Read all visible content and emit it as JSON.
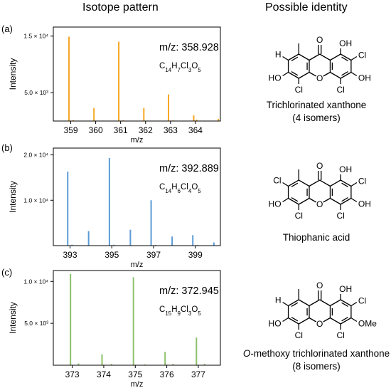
{
  "headers": {
    "left": "Isotope pattern",
    "right": "Possible identity"
  },
  "chart_data": [
    {
      "type": "bar",
      "panel": "(a)",
      "ylabel": "Intensity",
      "xlabel": "m/z",
      "xlim": [
        358.3,
        365.0
      ],
      "ylim": [
        0,
        16600
      ],
      "xticks": [
        "359",
        "360",
        "361",
        "362",
        "363",
        "364"
      ],
      "xtick_values": [
        359,
        360,
        361,
        362,
        363,
        364
      ],
      "yticks": [
        {
          "value": 15000,
          "label": "1.5 × 10⁴"
        },
        {
          "value": 5000,
          "label": "5.0 × 10³"
        }
      ],
      "color": "#f5a623",
      "mz_label": "m/z: 358.928",
      "formula": "C14H7Cl3O5",
      "formula_parts": [
        [
          "C",
          ""
        ],
        [
          "14",
          "sub"
        ],
        [
          "H",
          ""
        ],
        [
          "7",
          "sub"
        ],
        [
          "Cl",
          ""
        ],
        [
          "3",
          "sub"
        ],
        [
          "O",
          ""
        ],
        [
          "5",
          "sub"
        ]
      ],
      "peaks": [
        {
          "x": 358.928,
          "y": 14900
        },
        {
          "x": 359.93,
          "y": 2300
        },
        {
          "x": 360.925,
          "y": 14000
        },
        {
          "x": 361.93,
          "y": 2300
        },
        {
          "x": 362.92,
          "y": 4700
        },
        {
          "x": 363.93,
          "y": 1000
        },
        {
          "x": 364.92,
          "y": 380
        },
        {
          "x": 359.1,
          "y": 150
        },
        {
          "x": 361.1,
          "y": 120
        },
        {
          "x": 363.1,
          "y": 100
        },
        {
          "x": 364.05,
          "y": 250
        }
      ],
      "compound": {
        "line1": "Trichlorinated xanthone",
        "line2": "(4 isomers)"
      }
    },
    {
      "type": "bar",
      "panel": "(b)",
      "ylabel": "Intensity",
      "xlabel": "m/z",
      "xlim": [
        392.2,
        400.2
      ],
      "ylim": [
        0,
        21500
      ],
      "xticks": [
        "393",
        "395",
        "397",
        "399"
      ],
      "xtick_values": [
        393,
        395,
        397,
        399
      ],
      "yticks": [
        {
          "value": 20000,
          "label": "2.0 × 10⁴"
        },
        {
          "value": 10000,
          "label": "1.0 × 10⁴"
        }
      ],
      "color": "#5b9bd5",
      "mz_label": "m/z: 392.889",
      "formula": "C14H6Cl4O5",
      "formula_parts": [
        [
          "C",
          ""
        ],
        [
          "14",
          "sub"
        ],
        [
          "H",
          ""
        ],
        [
          "6",
          "sub"
        ],
        [
          "Cl",
          ""
        ],
        [
          "4",
          "sub"
        ],
        [
          "O",
          ""
        ],
        [
          "5",
          "sub"
        ]
      ],
      "peaks": [
        {
          "x": 392.889,
          "y": 16300
        },
        {
          "x": 393.89,
          "y": 3200
        },
        {
          "x": 394.886,
          "y": 19300
        },
        {
          "x": 395.89,
          "y": 3500
        },
        {
          "x": 396.883,
          "y": 10000
        },
        {
          "x": 397.89,
          "y": 2000
        },
        {
          "x": 398.88,
          "y": 2300
        },
        {
          "x": 399.89,
          "y": 700
        },
        {
          "x": 393.1,
          "y": 200
        },
        {
          "x": 395.1,
          "y": 200
        },
        {
          "x": 397.1,
          "y": 150
        },
        {
          "x": 399.1,
          "y": 150
        }
      ],
      "compound": {
        "line1": "Thiophanic acid",
        "line2": ""
      }
    },
    {
      "type": "bar",
      "panel": "(c)",
      "ylabel": "Intensity",
      "xlabel": "m/z",
      "xlim": [
        372.4,
        377.7
      ],
      "ylim": [
        0,
        11300
      ],
      "xticks": [
        "373",
        "374",
        "375",
        "376",
        "377"
      ],
      "xtick_values": [
        373,
        374,
        375,
        376,
        377
      ],
      "yticks": [
        {
          "value": 10000,
          "label": "1.0 × 10⁴"
        },
        {
          "value": 5000,
          "label": "5.0 × 10³"
        }
      ],
      "color": "#8cc06a",
      "mz_label": "m/z: 372.945",
      "formula": "C15H9Cl3O5",
      "formula_parts": [
        [
          "C",
          ""
        ],
        [
          "15",
          "sub"
        ],
        [
          "H",
          ""
        ],
        [
          "9",
          "sub"
        ],
        [
          "Cl",
          ""
        ],
        [
          "3",
          "sub"
        ],
        [
          "O",
          ""
        ],
        [
          "5",
          "sub"
        ]
      ],
      "peaks": [
        {
          "x": 372.945,
          "y": 10900
        },
        {
          "x": 373.945,
          "y": 1300
        },
        {
          "x": 374.942,
          "y": 10500
        },
        {
          "x": 375.945,
          "y": 1600
        },
        {
          "x": 376.94,
          "y": 3300
        },
        {
          "x": 377.2,
          "y": 150
        },
        {
          "x": 373.2,
          "y": 200
        },
        {
          "x": 374.25,
          "y": 150
        },
        {
          "x": 375.3,
          "y": 100
        },
        {
          "x": 376.2,
          "y": 150
        }
      ],
      "compound": {
        "line1_italic": "O",
        "line1": "-methoxy trichlorinated xanthone",
        "line2": "(8 isomers)"
      }
    }
  ],
  "structure_labels": {
    "O": "O",
    "OH": "OH",
    "Cl": "Cl",
    "H": "H",
    "HO": "HO",
    "OMe": "OMe"
  }
}
